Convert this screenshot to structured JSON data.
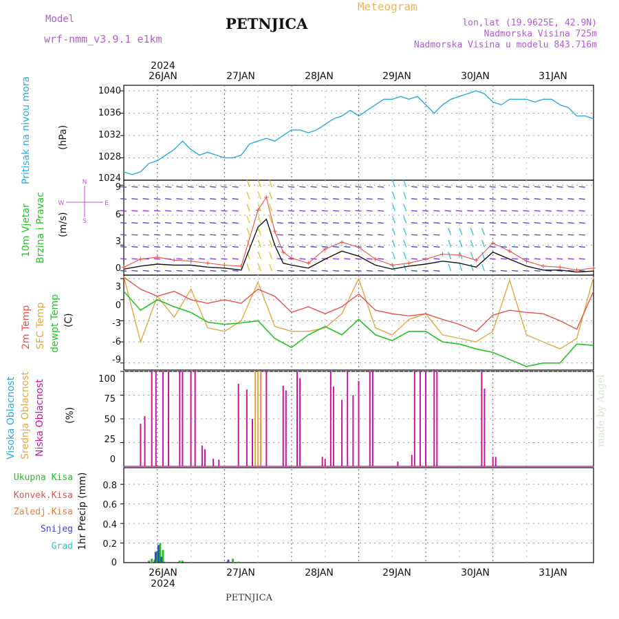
{
  "header": {
    "title": "PETNJICA",
    "meteogram_label": "Meteogram",
    "model_label": "Model",
    "model_name": "wrf-nmm_v3.9.1  e1km",
    "info_lines": [
      "lon,lat (19.9625E, 42.9N)",
      "Nadmorska Visina 725m",
      "Nadmorska Visina u modelu 843.716m"
    ],
    "made_by": "made by Angel",
    "footer": "PETNJICA"
  },
  "dates": {
    "year": "2024",
    "labels": [
      "26JAN",
      "27JAN",
      "28JAN",
      "29JAN",
      "30JAN",
      "31JAN"
    ]
  },
  "colors": {
    "pressure": "#2aa8e0",
    "temp2m": "#e8504a",
    "sfc_temp": "#e0a840",
    "dewpt": "#22c322",
    "cloud_high": "#2aa8e0",
    "cloud_mid": "#e0a840",
    "cloud_low": "#c8149a",
    "precip_total": "#22c322",
    "precip_convective": "#e8504a",
    "precip_frozen": "#f07830",
    "precip_snow": "#3b46d8",
    "precip_graupel": "#22c8c8",
    "wind_speed": "#111111",
    "wind_gust": "#e8504a",
    "wind_arrow_calm": "#7b2bd8",
    "wind_arrow_strong": "#e0c020"
  },
  "panels": {
    "pressure": {
      "ylabel": "Pritisak na nivou mora",
      "unit": "(hPa)",
      "ticks": [
        "1040",
        "1036",
        "1032",
        "1028",
        "1024"
      ]
    },
    "wind": {
      "ylabel_1": "10m Vjetar",
      "ylabel_2": "Brzina i Pravac",
      "unit": "(m/s)",
      "ticks": [
        "9",
        "6",
        "3",
        "0"
      ],
      "compass": {
        "n": "N",
        "s": "S",
        "e": "E",
        "w": "W"
      }
    },
    "temperature": {
      "ylabel_1": "2m Temp",
      "ylabel_2": "SFC Temp",
      "ylabel_3": "dewpt Temp",
      "unit": "(C)",
      "ticks": [
        "3",
        "0",
        "-3",
        "-6",
        "-9"
      ]
    },
    "clouds": {
      "ylabel_1": "Visoka Oblacnost",
      "ylabel_2": "Srednja Oblacnost",
      "ylabel_3": "Niska Oblacnost",
      "unit": "(%)",
      "ticks": [
        "100",
        "75",
        "50",
        "25",
        "0"
      ]
    },
    "precip": {
      "ylabel": "1hr Precip (mm)",
      "ticks": [
        "0.8",
        "0.6",
        "0.4",
        "0.2",
        "0"
      ],
      "legend": [
        "Ukupna Kisa",
        "Konvek.Kisa",
        "Zaledj.Kisa",
        "Snijeg",
        "Grad"
      ]
    }
  },
  "chart_data": [
    {
      "type": "line",
      "title": "",
      "ylabel": "Pritisak na nivou mora (hPa)",
      "x_unit": "hours since 25JAN 12Z",
      "ylim": [
        1024,
        1041
      ],
      "series": [
        {
          "name": "Pritisak na nivou mora",
          "x": [
            0,
            3,
            6,
            9,
            12,
            15,
            18,
            21,
            24,
            27,
            30,
            33,
            36,
            39,
            42,
            45,
            48,
            51,
            54,
            57,
            60,
            63,
            66,
            69,
            72,
            75,
            78,
            81,
            84,
            87,
            90,
            93,
            96,
            99,
            102,
            105,
            108,
            111,
            114,
            117,
            120,
            123,
            126,
            129,
            132,
            135,
            138,
            141,
            144,
            147,
            150,
            153,
            156,
            159,
            162,
            165,
            168
          ],
          "values": [
            1025.5,
            1025,
            1025.5,
            1027,
            1027.5,
            1028.5,
            1029.5,
            1031,
            1029.5,
            1028.5,
            1029,
            1028.5,
            1028,
            1028,
            1028.5,
            1030.5,
            1031,
            1031.5,
            1031,
            1032,
            1033,
            1033,
            1032.5,
            1033,
            1034,
            1035,
            1035.5,
            1036.5,
            1035.5,
            1036.5,
            1037.5,
            1038.5,
            1038.5,
            1039,
            1038.5,
            1039,
            1037.5,
            1036,
            1037.5,
            1038.5,
            1039,
            1039.5,
            1040,
            1039.5,
            1038,
            1037.5,
            1038.5,
            1038.5,
            1038.5,
            1038,
            1038.5,
            1038.5,
            1037.5,
            1037,
            1035.5,
            1035.5,
            1035
          ]
        }
      ]
    },
    {
      "type": "line",
      "title": "",
      "ylabel": "10m Vjetar Brzina i Pravac (m/s)",
      "ylim": [
        0,
        9.5
      ],
      "series": [
        {
          "name": "speed",
          "x": [
            0,
            6,
            12,
            18,
            24,
            30,
            36,
            42,
            48,
            51,
            54,
            57,
            60,
            66,
            72,
            78,
            84,
            90,
            96,
            102,
            108,
            114,
            120,
            126,
            132,
            138,
            144,
            150,
            156,
            162,
            168
          ],
          "values": [
            0.6,
            0.9,
            1.1,
            1.0,
            1.0,
            0.8,
            0.7,
            0.5,
            4.8,
            5.6,
            3.0,
            1.2,
            1.0,
            0.7,
            1.6,
            2.4,
            1.9,
            1.0,
            0.6,
            0.9,
            1.1,
            1.4,
            1.2,
            0.8,
            2.3,
            1.6,
            0.9,
            0.5,
            0.5,
            0.3,
            0.4
          ]
        },
        {
          "name": "gust",
          "x": [
            0,
            6,
            12,
            18,
            24,
            30,
            36,
            42,
            48,
            51,
            54,
            57,
            60,
            66,
            72,
            78,
            84,
            90,
            96,
            102,
            108,
            114,
            120,
            126,
            132,
            138,
            144,
            150,
            156,
            162,
            168
          ],
          "values": [
            0.8,
            1.6,
            1.8,
            1.5,
            1.4,
            1.2,
            1.0,
            0.9,
            6.5,
            7.8,
            4.4,
            2.3,
            1.7,
            1.2,
            2.6,
            3.3,
            2.8,
            1.6,
            1.0,
            1.2,
            1.6,
            2.1,
            2.0,
            1.5,
            3.2,
            2.4,
            1.4,
            0.9,
            0.8,
            0.5,
            0.7
          ]
        }
      ]
    },
    {
      "type": "line",
      "title": "",
      "ylabel": "2m Temp / SFC Temp / dewpt Temp (C)",
      "ylim": [
        -10,
        3.5
      ],
      "series": [
        {
          "name": "2m Temp",
          "x": [
            0,
            6,
            12,
            18,
            24,
            30,
            36,
            42,
            48,
            54,
            60,
            66,
            72,
            78,
            84,
            90,
            96,
            102,
            108,
            114,
            120,
            126,
            132,
            138,
            144,
            150,
            156,
            162,
            168
          ],
          "values": [
            3.2,
            1.5,
            0.5,
            1.2,
            0,
            -0.5,
            0,
            -0.5,
            1.5,
            0.5,
            -1.8,
            -1,
            -2,
            -1,
            0.8,
            -1.5,
            -2,
            -2.3,
            -2,
            -2.8,
            -3.5,
            -4.5,
            -2.2,
            -1.5,
            -1.8,
            -2,
            -3,
            -4.2,
            1.2
          ]
        },
        {
          "name": "SFC Temp",
          "x": [
            0,
            6,
            12,
            18,
            24,
            30,
            36,
            42,
            48,
            54,
            60,
            66,
            72,
            78,
            84,
            90,
            96,
            102,
            108,
            114,
            120,
            126,
            132,
            138,
            144,
            150,
            156,
            162,
            168
          ],
          "values": [
            3.3,
            -6,
            0.5,
            -2.5,
            1.5,
            -4,
            -4.5,
            -3,
            2.5,
            -3.8,
            -4.5,
            -4.5,
            -4,
            -2,
            3,
            -4,
            -5,
            -2.8,
            -2,
            -5,
            -5.5,
            -6,
            -4.5,
            2.8,
            -5,
            -6,
            -7,
            -5.5,
            3.2
          ]
        },
        {
          "name": "dewpt Temp",
          "x": [
            0,
            6,
            12,
            18,
            24,
            30,
            36,
            42,
            48,
            54,
            60,
            66,
            72,
            78,
            84,
            90,
            96,
            102,
            108,
            114,
            120,
            126,
            132,
            138,
            144,
            150,
            156,
            162,
            168
          ],
          "values": [
            1.2,
            -1.5,
            0,
            -1,
            -1.8,
            -3.2,
            -3.5,
            -3.3,
            -3,
            -5.5,
            -6.8,
            -5,
            -3.8,
            -5,
            -2.8,
            -5,
            -5.8,
            -4.5,
            -4.5,
            -6,
            -6.3,
            -7,
            -7.5,
            -8.5,
            -9.5,
            -9,
            -9,
            -6.3,
            -6.5
          ]
        }
      ]
    },
    {
      "type": "bar",
      "title": "",
      "ylabel": "Oblacnost (%)",
      "ylim": [
        0,
        100
      ],
      "series": [
        {
          "name": "Niska Oblacnost",
          "x": [
            6,
            7.5,
            10,
            11.5,
            14,
            16,
            20,
            21,
            24,
            25.5,
            28,
            29,
            32,
            34,
            41,
            44,
            46,
            49,
            51,
            57,
            58,
            62,
            63,
            71,
            72,
            74,
            75,
            78,
            80,
            82,
            84,
            88,
            89,
            98,
            103,
            104,
            106,
            108,
            111,
            112,
            128,
            129,
            132,
            133
          ],
          "values": [
            45,
            53,
            100,
            100,
            100,
            100,
            100,
            100,
            100,
            100,
            22,
            18,
            8,
            7,
            87,
            81,
            50,
            100,
            100,
            85,
            80,
            100,
            93,
            10,
            8,
            100,
            84,
            70,
            100,
            75,
            90,
            100,
            100,
            5,
            12,
            100,
            100,
            100,
            100,
            100,
            100,
            82,
            10,
            10
          ]
        },
        {
          "name": "Srednja Oblacnost",
          "x": [
            47,
            48,
            49
          ],
          "values": [
            100,
            100,
            100
          ]
        },
        {
          "name": "Visoka Oblacnost",
          "x": [],
          "values": []
        }
      ]
    },
    {
      "type": "bar",
      "title": "",
      "ylabel": "1hr Precip (mm)",
      "ylim": [
        0,
        0.97
      ],
      "series": [
        {
          "name": "Ukupna Kisa",
          "x": [
            9,
            10,
            11,
            12,
            13,
            14,
            20,
            21,
            37,
            39,
            41
          ],
          "values": [
            0.02,
            0.04,
            0.03,
            0.12,
            0.2,
            0.13,
            0.02,
            0.02,
            0.01,
            0.04,
            0.01
          ]
        },
        {
          "name": "Snijeg",
          "x": [
            12,
            13,
            14,
            38
          ],
          "values": [
            0.11,
            0.18,
            0.06,
            0.03
          ]
        },
        {
          "name": "Grad",
          "x": [
            14
          ],
          "values": [
            0.01
          ]
        }
      ]
    }
  ]
}
